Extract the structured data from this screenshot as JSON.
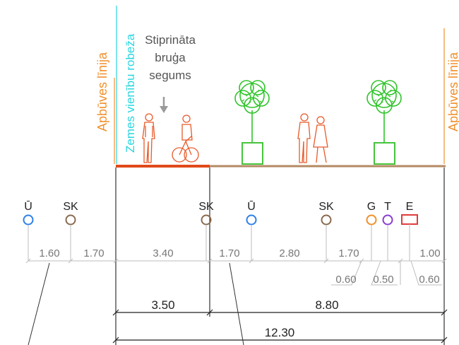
{
  "labels": {
    "building_line_left": "Apbūves līnija",
    "building_line_right": "Apbūves līnija",
    "land_boundary": "Zemes vienību robeža",
    "paving_line1": "Stiprināta",
    "paving_line2": "bruģa",
    "paving_line3": "segums"
  },
  "utilities": [
    {
      "code": "Ū",
      "color": "#2f80e8",
      "shape": "circle"
    },
    {
      "code": "SK",
      "color": "#8a6a4e",
      "shape": "circle"
    },
    {
      "code": "SK",
      "color": "#8a6a4e",
      "shape": "circle"
    },
    {
      "code": "Ū",
      "color": "#2f80e8",
      "shape": "circle"
    },
    {
      "code": "SK",
      "color": "#8a6a4e",
      "shape": "circle"
    },
    {
      "code": "G",
      "color": "#f0902c",
      "shape": "circle"
    },
    {
      "code": "T",
      "color": "#8a3ccf",
      "shape": "circle"
    },
    {
      "code": "E",
      "color": "#e03c3c",
      "shape": "rect"
    }
  ],
  "dim_row1": [
    "1.60",
    "1.70",
    "3.40",
    "1.70",
    "2.80",
    "1.70",
    "1.00"
  ],
  "dim_row2": [
    "0.60",
    "0.50",
    "0.60"
  ],
  "dim_row3": [
    "3.50",
    "8.80"
  ],
  "dim_total": "12.30",
  "colors": {
    "building_line": "#f0902c",
    "land_boundary": "#2ad6e0",
    "paving": "#e04a1a",
    "ground": "#b58a64",
    "planter": "#46c43c",
    "tree": "#2fc42a",
    "dimension": "#bdbdbd"
  }
}
